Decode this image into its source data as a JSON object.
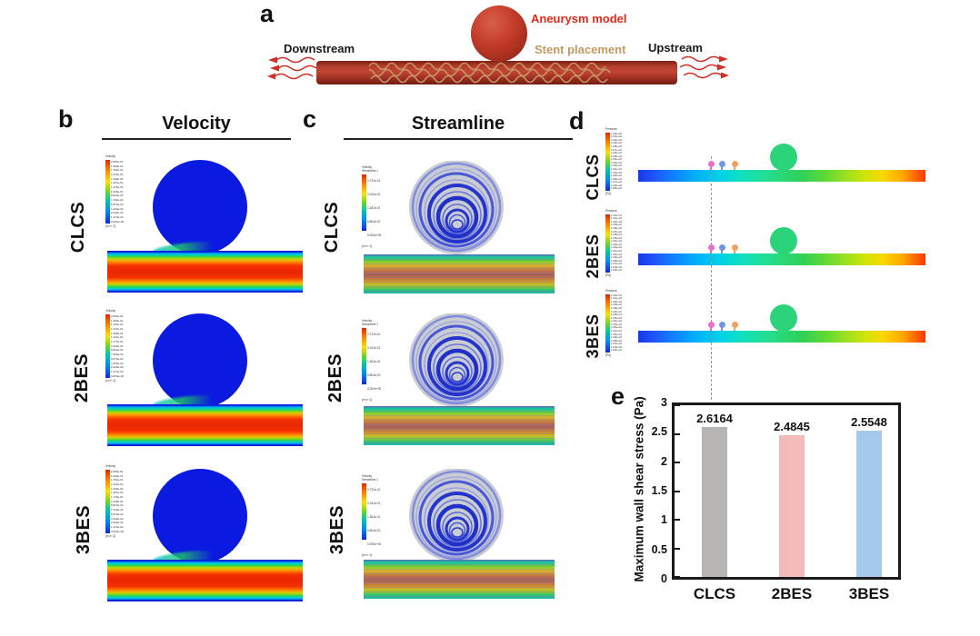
{
  "figure_labels": {
    "a": "a",
    "b": "b",
    "c": "c",
    "d": "d",
    "e": "e"
  },
  "panel_a": {
    "downstream_label": "Downstream",
    "upstream_label": "Upstream",
    "aneurysm_label": "Aneurysm model",
    "stent_label": "Stent placement"
  },
  "panel_b": {
    "title": "Velocity",
    "row_labels": [
      "CLCS",
      "2BES",
      "3BES"
    ]
  },
  "panel_c": {
    "title": "Streamline",
    "row_labels": [
      "CLCS",
      "2BES",
      "3BES"
    ]
  },
  "panel_d": {
    "row_labels": [
      "CLCS",
      "2BES",
      "3BES"
    ]
  },
  "legends": {
    "velocity": {
      "title_lines": [
        "Velocity"
      ],
      "unit": "[m s^-1]",
      "ticks": [
        "2.056e-01",
        "1.909e-01",
        "1.762e-01",
        "1.615e-01",
        "1.468e-01",
        "1.321e-01",
        "1.175e-01",
        "1.028e-01",
        "8.810e-02",
        "7.340e-02",
        "5.870e-02",
        "4.400e-02",
        "2.940e-02",
        "1.470e-02",
        "0.000e+00"
      ]
    },
    "streamline": {
      "title_lines": [
        "Velocity",
        "Streamline 1"
      ],
      "unit": "[m s^-1]",
      "ticks": [
        "2.722e-01",
        "2.041e-01",
        "1.361e-01",
        "6.804e-02",
        "0.000e+00"
      ]
    },
    "pressure": {
      "title_lines": [
        "Pressure"
      ],
      "unit": "[Pa]",
      "ticks": [
        "1.242e+04",
        "1.241e+04",
        "1.240e+04",
        "1.239e+04",
        "1.238e+04",
        "1.237e+04",
        "1.236e+04",
        "1.235e+04",
        "1.234e+04",
        "1.233e+04",
        "1.232e+04",
        "1.231e+04",
        "1.230e+04",
        "1.229e+04",
        "1.228e+04",
        "1.227e+04",
        "1.226e+04",
        "1.225e+04"
      ]
    }
  },
  "chart_data": {
    "type": "bar",
    "title": "",
    "categories": [
      "CLCS",
      "2BES",
      "3BES"
    ],
    "values": [
      2.6164,
      2.4845,
      2.5548
    ],
    "value_labels": [
      "2.6164",
      "2.4845",
      "2.5548"
    ],
    "xlabel": "",
    "ylabel": "Maximum wall shear stress (Pa)",
    "ylim": [
      0,
      3
    ],
    "yticks": [
      "3",
      "2.5",
      "2",
      "1.5",
      "1",
      "0.5",
      "0"
    ],
    "bar_colors": [
      "#b7b4b1",
      "#f3babc",
      "#a6c8ec"
    ],
    "grid": false,
    "legend_position": "none"
  },
  "colors": {
    "aneurysm_red": "#b5301f",
    "velocity_dome_blue": "#0b15d8",
    "pressure_circle_green": "#2bd47a",
    "marker_pink": "#e670cc",
    "marker_blue": "#6f96e0",
    "marker_orange": "#f0a060",
    "arrow_red": "#d03028",
    "stent_tan": "#c49a62"
  }
}
